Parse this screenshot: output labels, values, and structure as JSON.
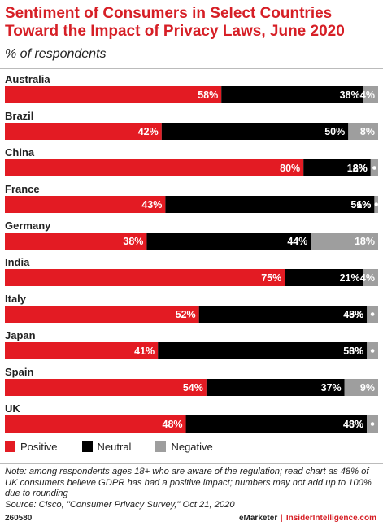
{
  "header": {
    "title": "Sentiment of Consumers in Select Countries Toward the Impact of Privacy Laws, June 2020",
    "subtitle": "% of respondents"
  },
  "chart_data": {
    "type": "bar",
    "orientation": "horizontal-stacked",
    "categories": [
      "Australia",
      "Brazil",
      "China",
      "France",
      "Germany",
      "India",
      "Italy",
      "Japan",
      "Spain",
      "UK"
    ],
    "series": [
      {
        "name": "Positive",
        "color": "#e31b23",
        "values": [
          58,
          42,
          80,
          43,
          38,
          75,
          52,
          41,
          54,
          48
        ]
      },
      {
        "name": "Neutral",
        "color": "#000000",
        "values": [
          38,
          50,
          18,
          56,
          44,
          21,
          45,
          56,
          37,
          48
        ]
      },
      {
        "name": "Negative",
        "color": "#9e9e9e",
        "values": [
          4,
          8,
          2,
          1,
          18,
          4,
          3,
          3,
          9,
          3
        ]
      }
    ],
    "value_suffix": "%",
    "xlim": [
      0,
      100
    ],
    "legend_position": "bottom-left"
  },
  "legend": {
    "positive": "Positive",
    "neutral": "Neutral",
    "negative": "Negative"
  },
  "notes": {
    "note": "Note: among respondents ages 18+ who are aware of the regulation; read chart as 48% of UK consumers believe GDPR has had a positive impact; numbers may not add up to 100% due to rounding",
    "source": "Source: Cisco, \"Consumer Privacy Survey,\" Oct 21, 2020"
  },
  "footer": {
    "chart_id": "260580",
    "brand": "eMarketer",
    "separator": "|",
    "site": "InsiderIntelligence.com"
  }
}
